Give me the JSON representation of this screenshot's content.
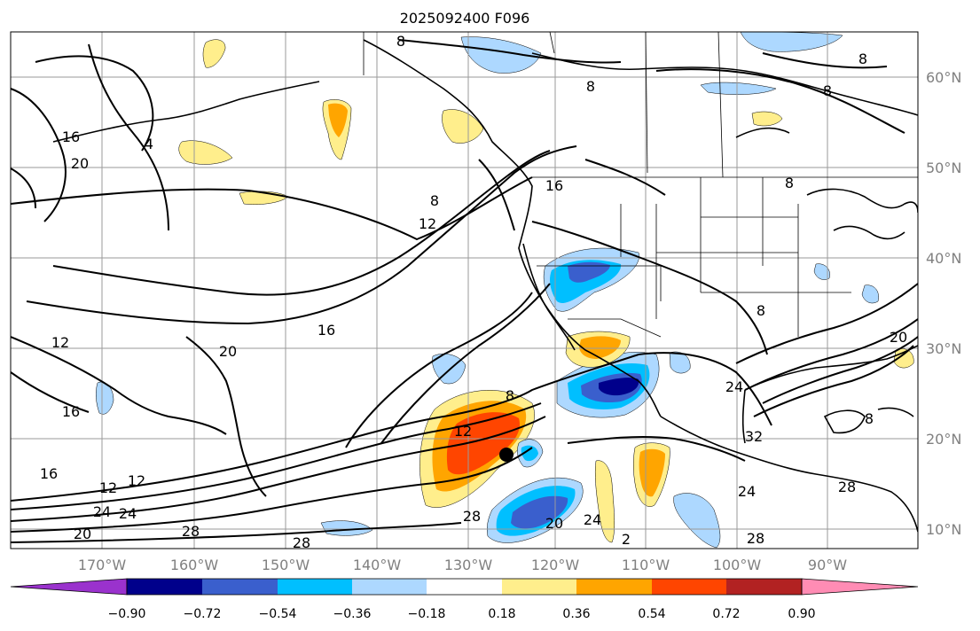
{
  "title": "2025092400 F096",
  "map": {
    "lat_labels": [
      "60°N",
      "50°N",
      "40°N",
      "30°N",
      "20°N",
      "10°N"
    ],
    "lon_labels": [
      "170°W",
      "160°W",
      "150°W",
      "140°W",
      "130°W",
      "120°W",
      "110°W",
      "100°W",
      "90°W"
    ],
    "marker": "center-point"
  },
  "colorbar": {
    "ticks": [
      "−0.90",
      "−0.72",
      "−0.54",
      "−0.36",
      "−0.18",
      "0.18",
      "0.36",
      "0.54",
      "0.72",
      "0.90"
    ],
    "colors": [
      "#9a32cd",
      "#00008b",
      "#3a5fcd",
      "#00bfff",
      "#add8ff",
      "#ffffff",
      "#ffee8c",
      "#ffa500",
      "#ff4500",
      "#b22222",
      "#ff8cb4"
    ]
  },
  "contour_labels": [
    "8",
    "8",
    "8",
    "4",
    "16",
    "20",
    "16",
    "8",
    "12",
    "16",
    "12",
    "20",
    "16",
    "16",
    "12",
    "12",
    "24",
    "24",
    "20",
    "28",
    "28",
    "8",
    "12",
    "28",
    "20",
    "24",
    "2",
    "8",
    "8",
    "24",
    "32",
    "24",
    "28",
    "28",
    "20",
    "8",
    "8"
  ]
}
